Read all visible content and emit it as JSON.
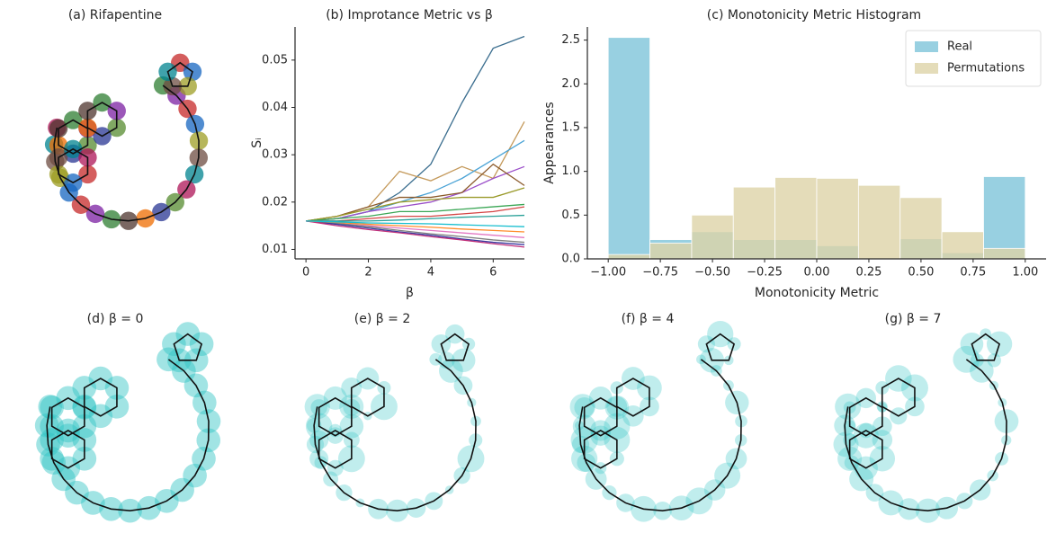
{
  "chart_data": [
    {
      "type": "molecule",
      "title": "(a) Rifapentine",
      "style": "colored"
    },
    {
      "type": "line",
      "title": "(b) Improtance Metric vs β",
      "xlabel": "β",
      "ylabel": "Sᵢ",
      "x": [
        0,
        1,
        2,
        3,
        4,
        5,
        6,
        7
      ],
      "xlim": [
        -0.35,
        7
      ],
      "ylim": [
        0.008,
        0.057
      ],
      "xticks": [
        0,
        2,
        4,
        6
      ],
      "yticks": [
        0.01,
        0.02,
        0.03,
        0.04,
        0.05
      ],
      "series": [
        {
          "color": "#3b6e8f",
          "values": [
            0.016,
            0.0165,
            0.018,
            0.022,
            0.028,
            0.041,
            0.0525,
            0.055
          ]
        },
        {
          "color": "#c4995a",
          "values": [
            0.016,
            0.017,
            0.019,
            0.0265,
            0.0245,
            0.0275,
            0.025,
            0.037
          ]
        },
        {
          "color": "#4aa3d6",
          "values": [
            0.016,
            0.0165,
            0.018,
            0.02,
            0.022,
            0.025,
            0.029,
            0.033
          ]
        },
        {
          "color": "#9b4fc9",
          "values": [
            0.016,
            0.0165,
            0.018,
            0.019,
            0.02,
            0.022,
            0.025,
            0.0275
          ]
        },
        {
          "color": "#8b5a2b",
          "values": [
            0.016,
            0.017,
            0.019,
            0.021,
            0.021,
            0.022,
            0.028,
            0.0235
          ]
        },
        {
          "color": "#9a9a2a",
          "values": [
            0.016,
            0.017,
            0.0185,
            0.02,
            0.0205,
            0.021,
            0.021,
            0.023
          ]
        },
        {
          "color": "#3aa655",
          "values": [
            0.016,
            0.0165,
            0.017,
            0.018,
            0.018,
            0.0185,
            0.019,
            0.0195
          ]
        },
        {
          "color": "#d44444",
          "values": [
            0.016,
            0.016,
            0.0165,
            0.017,
            0.017,
            0.0175,
            0.018,
            0.019
          ]
        },
        {
          "color": "#2aa198",
          "values": [
            0.016,
            0.016,
            0.016,
            0.0162,
            0.0165,
            0.0168,
            0.017,
            0.0172
          ]
        },
        {
          "color": "#e377c2",
          "values": [
            0.016,
            0.0155,
            0.015,
            0.0145,
            0.014,
            0.0135,
            0.013,
            0.0125
          ]
        },
        {
          "color": "#7f7f7f",
          "values": [
            0.016,
            0.0155,
            0.0148,
            0.014,
            0.0133,
            0.0127,
            0.012,
            0.0115
          ]
        },
        {
          "color": "#3a3aa0",
          "values": [
            0.016,
            0.0153,
            0.0145,
            0.0137,
            0.013,
            0.0122,
            0.0115,
            0.011
          ]
        },
        {
          "color": "#c0307a",
          "values": [
            0.016,
            0.015,
            0.0142,
            0.0135,
            0.0127,
            0.012,
            0.0112,
            0.0105
          ]
        },
        {
          "color": "#ff8c2a",
          "values": [
            0.016,
            0.0157,
            0.0153,
            0.015,
            0.0147,
            0.0143,
            0.014,
            0.0137
          ]
        },
        {
          "color": "#17becf",
          "values": [
            0.016,
            0.0158,
            0.0156,
            0.0155,
            0.0154,
            0.0152,
            0.015,
            0.0148
          ]
        }
      ]
    },
    {
      "type": "histogram",
      "title": "(c) Monotonicity Metric Histogram",
      "xlabel": "Monotonicity Metric",
      "ylabel": "Appearances",
      "bins": [
        -1,
        -0.8,
        -0.6,
        -0.4,
        -0.2,
        0,
        0.2,
        0.4,
        0.6,
        0.8,
        1
      ],
      "xlim": [
        -1.1,
        1.1
      ],
      "ylim": [
        0,
        2.65
      ],
      "xticks": [
        {
          "value": -1,
          "label": "−1.00"
        },
        {
          "value": -0.75,
          "label": "−0.75"
        },
        {
          "value": -0.5,
          "label": "−0.50"
        },
        {
          "value": -0.25,
          "label": "−0.25"
        },
        {
          "value": 0,
          "label": "0.00"
        },
        {
          "value": 0.25,
          "label": "0.25"
        },
        {
          "value": 0.5,
          "label": "0.50"
        },
        {
          "value": 0.75,
          "label": "0.75"
        },
        {
          "value": 1,
          "label": "1.00"
        }
      ],
      "yticks": [
        {
          "value": 0,
          "label": "0.0"
        },
        0.5,
        {
          "value": 1,
          "label": "1.0"
        },
        1.5,
        {
          "value": 2,
          "label": "2.0"
        },
        2.5
      ],
      "legend": "upper right",
      "series": [
        {
          "name": "Real",
          "color": "#7ec4d9",
          "values": [
            2.53,
            0.22,
            0.31,
            0.22,
            0.22,
            0.15,
            0,
            0.23,
            0.07,
            0.94
          ]
        },
        {
          "name": "Permutations",
          "color": "#ddd3a8",
          "values": [
            0.05,
            0.18,
            0.5,
            0.82,
            0.93,
            0.92,
            0.84,
            0.7,
            0.31,
            0.12
          ]
        }
      ]
    },
    {
      "type": "molecule",
      "title": "(d) β = 0",
      "style": "uniform"
    },
    {
      "type": "molecule",
      "title": "(e) β = 2",
      "style": "weighted"
    },
    {
      "type": "molecule",
      "title": "(f) β = 4",
      "style": "weighted"
    },
    {
      "type": "molecule",
      "title": "(g) β = 7",
      "style": "weighted"
    }
  ]
}
